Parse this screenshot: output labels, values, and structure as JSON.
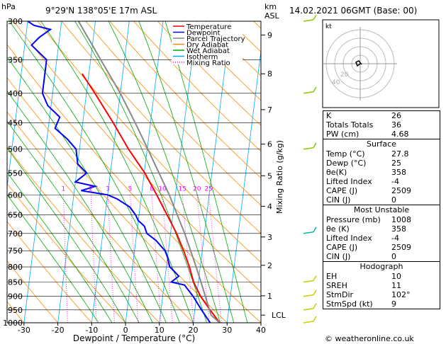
{
  "header": {
    "location": "9°29'N 138°05'E 17m ASL",
    "datetime": "14.02.2021 06GMT (Base: 00)",
    "pressure_unit": "hPa",
    "height_unit_1": "km",
    "height_unit_2": "ASL",
    "mixing_label": "Mixing Ratio (g/kg)",
    "footer": "© weatheronline.co.uk"
  },
  "colors": {
    "temperature": "#ff0000",
    "dewpoint": "#0000ff",
    "parcel": "#888888",
    "dry_adiabat": "#ff8c00",
    "wet_adiabat": "#00aa00",
    "isotherm": "#00aaff",
    "mixing_ratio": "#ff00ff"
  },
  "legend": [
    "Temperature",
    "Dewpoint",
    "Parcel Trajectory",
    "Dry Adiabat",
    "Wet Adiabat",
    "Isotherm",
    "Mixing Ratio"
  ],
  "chart_data": {
    "type": "line",
    "title": "9°29'N 138°05'E 17m ASL",
    "xlabel": "Dewpoint / Temperature (°C)",
    "ylabel": "hPa",
    "xlim": [
      -35,
      40
    ],
    "ylim": [
      1000,
      300
    ],
    "x_ticks": [
      "-30",
      "-20",
      "-10",
      "0",
      "10",
      "20",
      "30",
      "40"
    ],
    "pressure_levels": [
      300,
      350,
      400,
      450,
      500,
      550,
      600,
      650,
      700,
      750,
      800,
      850,
      900,
      950,
      1000
    ],
    "km_ticks": [
      {
        "km": "1",
        "p": 898
      },
      {
        "km": "2",
        "p": 795
      },
      {
        "km": "3",
        "p": 710
      },
      {
        "km": "4",
        "p": 628
      },
      {
        "km": "5",
        "p": 556
      },
      {
        "km": "6",
        "p": 490
      },
      {
        "km": "7",
        "p": 427
      },
      {
        "km": "8",
        "p": 370
      },
      {
        "km": "9",
        "p": 317
      }
    ],
    "lcl": {
      "label": "LCL",
      "p": 970
    },
    "mixing_ratio_labels": [
      {
        "g": "1",
        "p": 595
      },
      {
        "g": "2",
        "p": 595
      },
      {
        "g": "3",
        "p": 595
      },
      {
        "g": "5",
        "p": 595
      },
      {
        "g": "8",
        "p": 595
      },
      {
        "g": "10",
        "p": 595
      },
      {
        "g": "15",
        "p": 595
      },
      {
        "g": "20",
        "p": 595
      },
      {
        "g": "25",
        "p": 595
      }
    ],
    "series": [
      {
        "name": "Temperature",
        "points": [
          [
            1000,
            27.8
          ],
          [
            950,
            24.5
          ],
          [
            900,
            21.2
          ],
          [
            850,
            18.6
          ],
          [
            800,
            16.8
          ],
          [
            750,
            14.5
          ],
          [
            700,
            11.8
          ],
          [
            650,
            8.3
          ],
          [
            600,
            4.5
          ],
          [
            550,
            0.2
          ],
          [
            500,
            -5.5
          ],
          [
            450,
            -11.0
          ],
          [
            400,
            -17.5
          ],
          [
            370,
            -22.0
          ]
        ]
      },
      {
        "name": "Dewpoint",
        "points": [
          [
            1000,
            25
          ],
          [
            950,
            22
          ],
          [
            900,
            19
          ],
          [
            860,
            16
          ],
          [
            850,
            12
          ],
          [
            830,
            14
          ],
          [
            800,
            11
          ],
          [
            770,
            10
          ],
          [
            750,
            9
          ],
          [
            720,
            6
          ],
          [
            700,
            3
          ],
          [
            680,
            2
          ],
          [
            665,
            0
          ],
          [
            650,
            -1
          ],
          [
            630,
            -3
          ],
          [
            610,
            -7
          ],
          [
            600,
            -10
          ],
          [
            590,
            -18
          ],
          [
            580,
            -14
          ],
          [
            570,
            -20
          ],
          [
            550,
            -17
          ],
          [
            530,
            -20
          ],
          [
            500,
            -21
          ],
          [
            480,
            -24
          ],
          [
            460,
            -28
          ],
          [
            440,
            -27
          ],
          [
            420,
            -31
          ],
          [
            400,
            -33
          ],
          [
            380,
            -33
          ],
          [
            350,
            -33
          ],
          [
            330,
            -38
          ],
          [
            320,
            -36
          ],
          [
            310,
            -33
          ],
          [
            305,
            -38
          ],
          [
            300,
            -40
          ]
        ]
      },
      {
        "name": "Parcel Trajectory",
        "points": [
          [
            1000,
            27.8
          ],
          [
            970,
            25.0
          ],
          [
            900,
            22.6
          ],
          [
            850,
            20.8
          ],
          [
            800,
            18.8
          ],
          [
            700,
            14.2
          ],
          [
            600,
            8.2
          ],
          [
            500,
            0.2
          ],
          [
            450,
            -4.5
          ],
          [
            400,
            -10.0
          ],
          [
            350,
            -17.0
          ],
          [
            300,
            -25.0
          ]
        ]
      }
    ]
  },
  "indices": [
    {
      "label": "K",
      "value": "26"
    },
    {
      "label": "Totals Totals",
      "value": "36"
    },
    {
      "label": "PW (cm)",
      "value": "4.68"
    }
  ],
  "surface": {
    "title": "Surface",
    "rows": [
      {
        "label": "Temp (°C)",
        "value": "27.8"
      },
      {
        "label": "Dewp (°C)",
        "value": "25"
      },
      {
        "label": "θe(K)",
        "value": "358"
      },
      {
        "label": "Lifted Index",
        "value": "-4"
      },
      {
        "label": "CAPE (J)",
        "value": "2509"
      },
      {
        "label": "CIN (J)",
        "value": "0"
      }
    ]
  },
  "most_unstable": {
    "title": "Most Unstable",
    "rows": [
      {
        "label": "Pressure (mb)",
        "value": "1008"
      },
      {
        "label": "θe (K)",
        "value": "358"
      },
      {
        "label": "Lifted Index",
        "value": "-4"
      },
      {
        "label": "CAPE (J)",
        "value": "2509"
      },
      {
        "label": "CIN (J)",
        "value": "0"
      }
    ]
  },
  "hodograph": {
    "title": "Hodograph",
    "rows": [
      {
        "label": "EH",
        "value": "10"
      },
      {
        "label": "SREH",
        "value": "11"
      },
      {
        "label": "StmDir",
        "value": "102°"
      },
      {
        "label": "StmSpd (kt)",
        "value": "9"
      }
    ],
    "unit_label": "kt",
    "rings": [
      "20",
      "40"
    ]
  }
}
